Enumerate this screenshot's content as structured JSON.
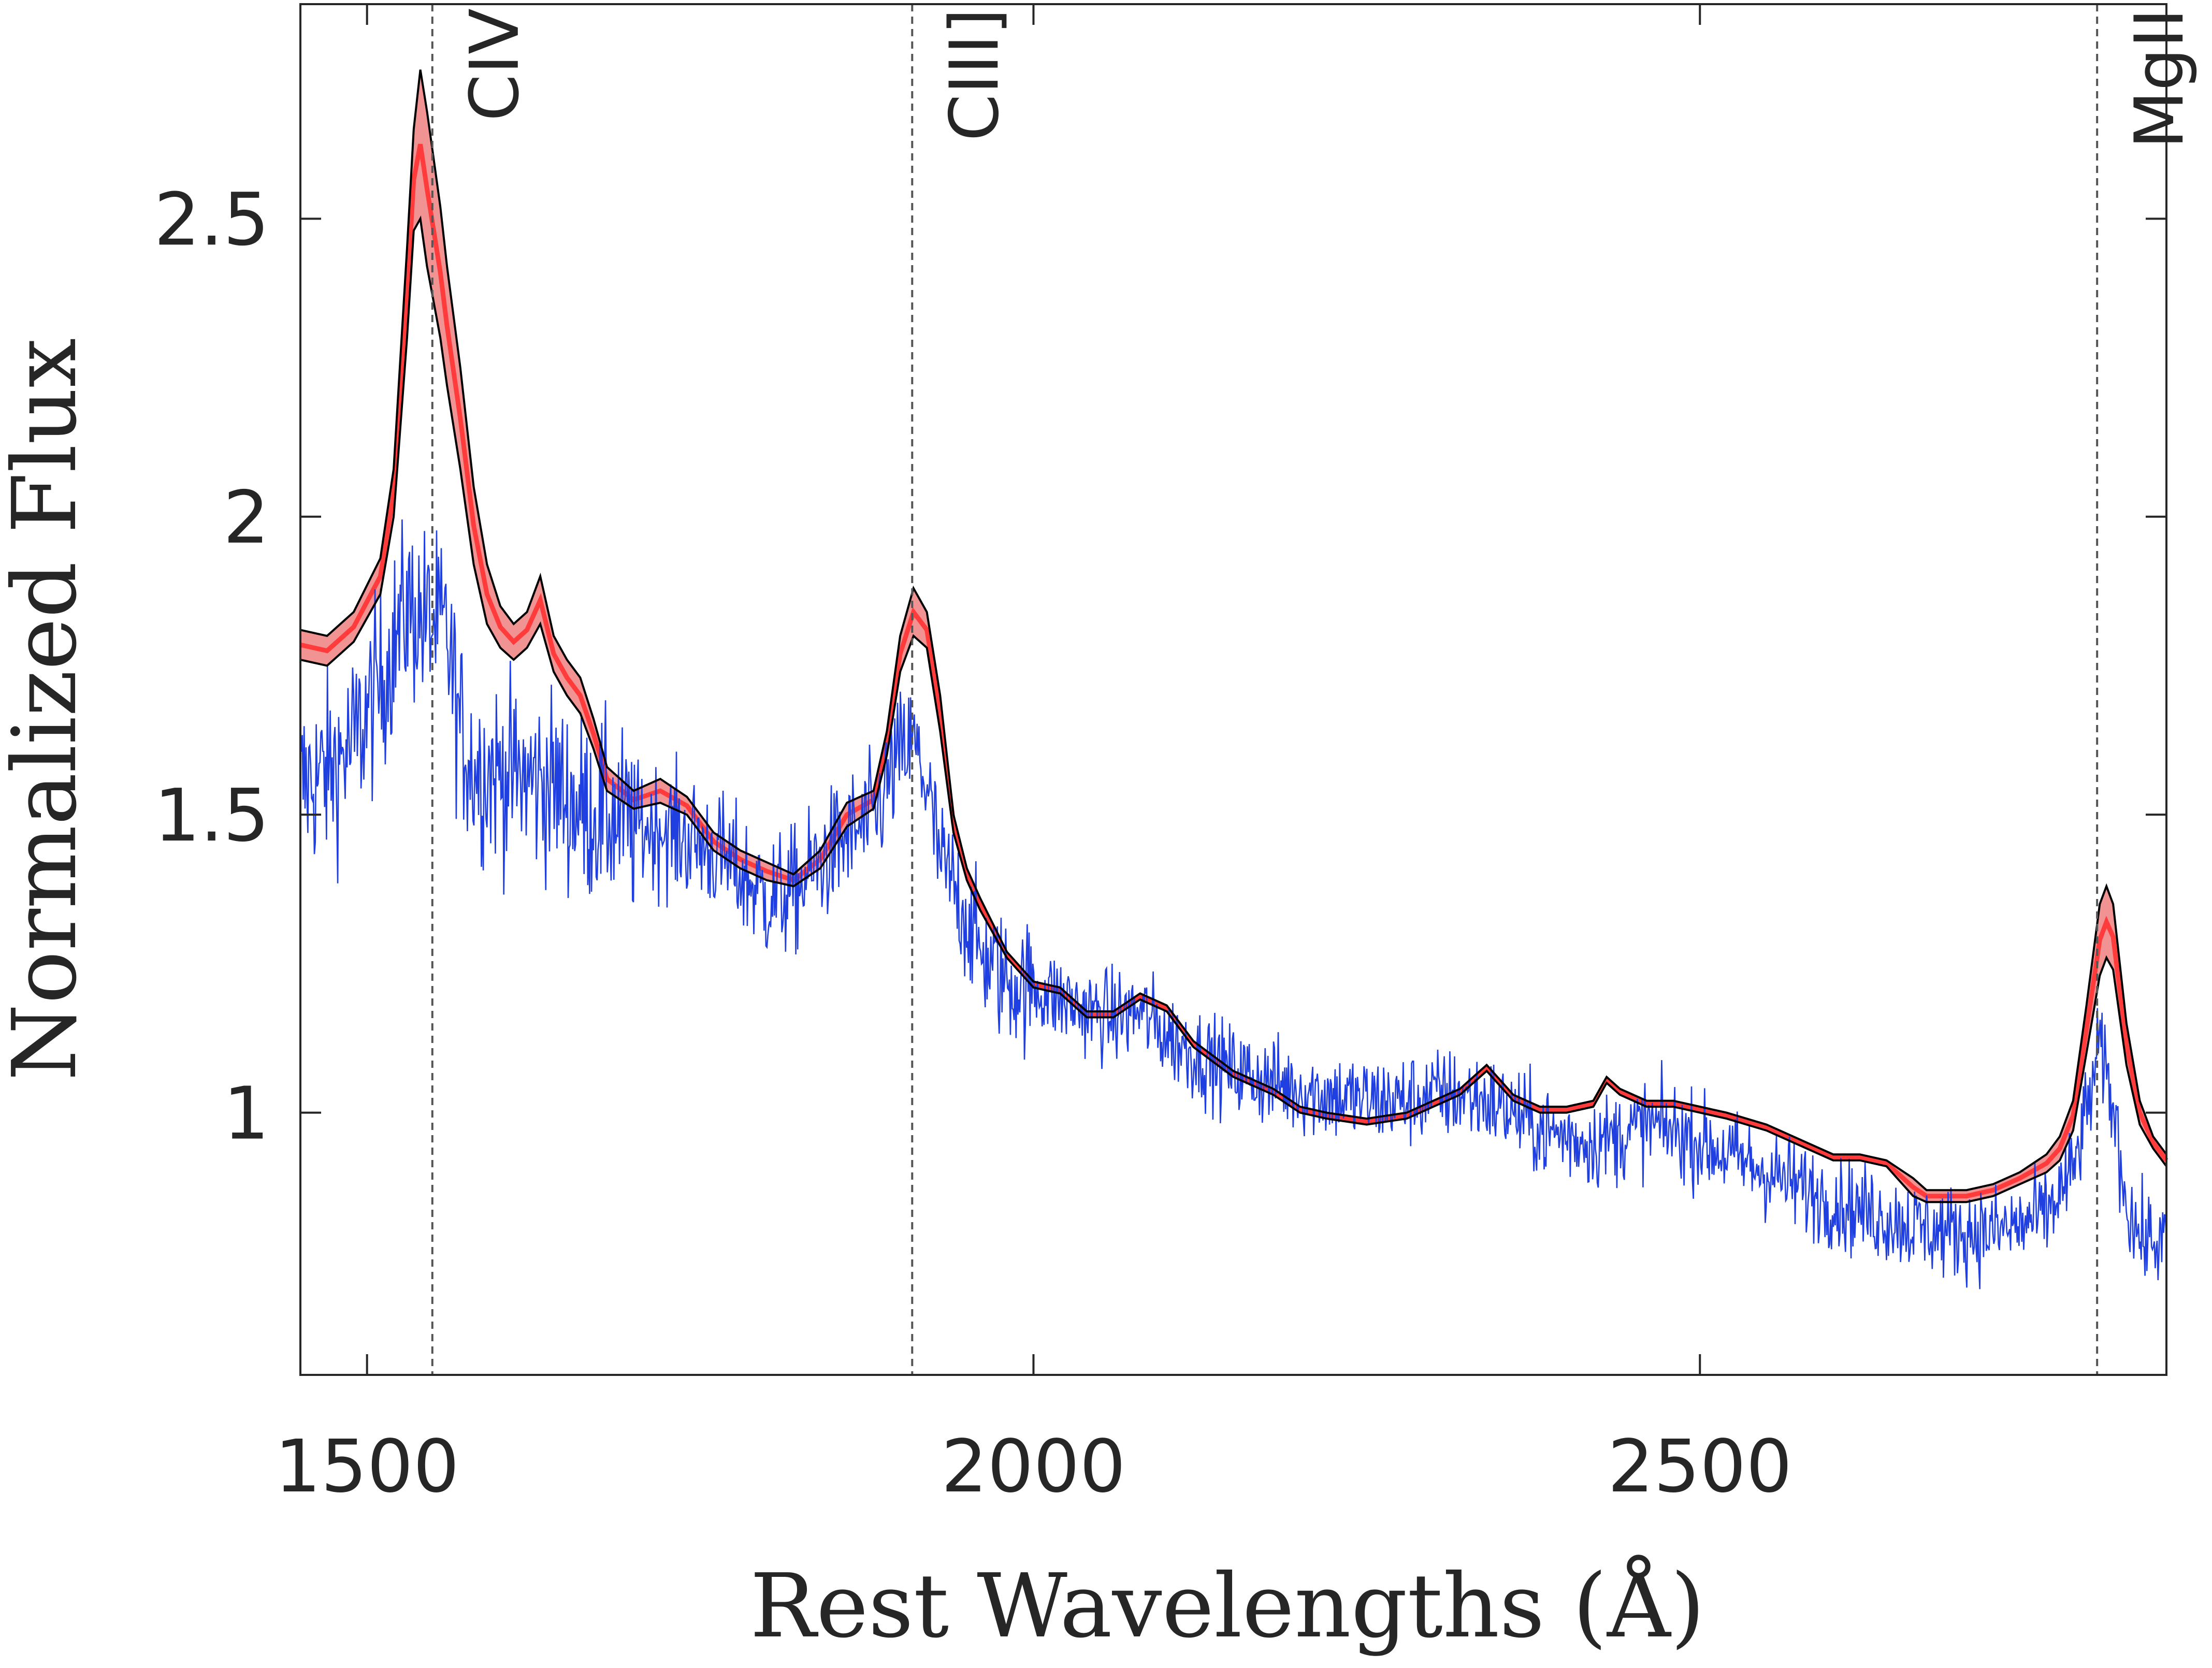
{
  "chart_data": {
    "type": "line",
    "title": "",
    "xlabel": "Rest Wavelengths (Å)",
    "ylabel": "Normalized Flux",
    "xlim": [
      1450,
      2850
    ],
    "ylim": [
      0.56,
      2.86
    ],
    "xticks": [
      1500,
      2000,
      2500
    ],
    "xtick_labels": [
      "1500",
      "2000",
      "2500"
    ],
    "yticks": [
      1,
      1.5,
      2,
      2.5
    ],
    "ytick_labels": [
      "1",
      "1.5",
      "2",
      "2.5"
    ],
    "grid": false,
    "legend": "none",
    "emission_lines": [
      {
        "label": "CIV",
        "x": 1549
      },
      {
        "label": "CIII]",
        "x": 1909
      },
      {
        "label": "MgII",
        "x": 2798
      }
    ],
    "series": [
      {
        "kind": "observed-spectrum",
        "color": "#1f3fe0",
        "noise_sigma": 0.07,
        "x": [
          1450,
          1470,
          1490,
          1510,
          1530,
          1540,
          1550,
          1560,
          1570,
          1580,
          1600,
          1620,
          1640,
          1660,
          1680,
          1700,
          1720,
          1740,
          1760,
          1780,
          1800,
          1820,
          1840,
          1860,
          1880,
          1890,
          1900,
          1910,
          1920,
          1930,
          1940,
          1960,
          1980,
          2000,
          2020,
          2040,
          2060,
          2080,
          2100,
          2120,
          2150,
          2180,
          2200,
          2220,
          2250,
          2280,
          2300,
          2320,
          2340,
          2360,
          2380,
          2400,
          2420,
          2440,
          2460,
          2480,
          2500,
          2520,
          2550,
          2580,
          2600,
          2630,
          2660,
          2680,
          2700,
          2720,
          2740,
          2760,
          2780,
          2790,
          2800,
          2810,
          2820,
          2830,
          2850
        ],
        "y": [
          1.55,
          1.57,
          1.62,
          1.72,
          1.85,
          1.83,
          1.82,
          1.8,
          1.64,
          1.58,
          1.57,
          1.56,
          1.55,
          1.51,
          1.5,
          1.48,
          1.48,
          1.46,
          1.44,
          1.4,
          1.36,
          1.37,
          1.42,
          1.46,
          1.49,
          1.55,
          1.6,
          1.62,
          1.55,
          1.42,
          1.38,
          1.27,
          1.22,
          1.21,
          1.19,
          1.17,
          1.16,
          1.17,
          1.13,
          1.1,
          1.07,
          1.05,
          1.04,
          1.03,
          1.02,
          1.02,
          1.03,
          1.03,
          1.02,
          1.0,
          0.97,
          0.96,
          0.95,
          0.96,
          0.98,
          0.97,
          0.95,
          0.93,
          0.9,
          0.87,
          0.85,
          0.83,
          0.81,
          0.8,
          0.8,
          0.8,
          0.81,
          0.83,
          0.9,
          1.0,
          1.11,
          1.01,
          0.85,
          0.79,
          0.78
        ]
      },
      {
        "kind": "model-upper",
        "color": "#000000",
        "x": [
          1450,
          1470,
          1490,
          1510,
          1520,
          1530,
          1535,
          1540,
          1545,
          1550,
          1555,
          1560,
          1570,
          1580,
          1590,
          1600,
          1610,
          1620,
          1630,
          1640,
          1650,
          1660,
          1670,
          1680,
          1700,
          1720,
          1740,
          1760,
          1780,
          1800,
          1820,
          1840,
          1860,
          1880,
          1890,
          1900,
          1910,
          1920,
          1930,
          1940,
          1950,
          1960,
          1980,
          2000,
          2020,
          2040,
          2060,
          2080,
          2100,
          2120,
          2150,
          2180,
          2200,
          2220,
          2250,
          2280,
          2300,
          2320,
          2340,
          2360,
          2380,
          2400,
          2420,
          2430,
          2440,
          2460,
          2480,
          2500,
          2520,
          2550,
          2580,
          2600,
          2620,
          2640,
          2660,
          2670,
          2680,
          2700,
          2720,
          2740,
          2760,
          2770,
          2780,
          2790,
          2800,
          2805,
          2810,
          2820,
          2830,
          2840,
          2850
        ],
        "y": [
          1.81,
          1.8,
          1.84,
          1.93,
          2.08,
          2.45,
          2.65,
          2.75,
          2.68,
          2.6,
          2.52,
          2.42,
          2.25,
          2.05,
          1.92,
          1.85,
          1.82,
          1.84,
          1.9,
          1.8,
          1.76,
          1.73,
          1.66,
          1.58,
          1.54,
          1.56,
          1.53,
          1.47,
          1.44,
          1.42,
          1.4,
          1.44,
          1.52,
          1.54,
          1.64,
          1.8,
          1.88,
          1.84,
          1.7,
          1.5,
          1.41,
          1.36,
          1.27,
          1.22,
          1.21,
          1.17,
          1.17,
          1.2,
          1.18,
          1.12,
          1.07,
          1.04,
          1.01,
          1.0,
          0.99,
          1.0,
          1.02,
          1.04,
          1.08,
          1.03,
          1.01,
          1.01,
          1.02,
          1.06,
          1.04,
          1.02,
          1.02,
          1.01,
          1.0,
          0.98,
          0.95,
          0.93,
          0.93,
          0.92,
          0.89,
          0.87,
          0.87,
          0.87,
          0.88,
          0.9,
          0.93,
          0.96,
          1.02,
          1.18,
          1.35,
          1.38,
          1.35,
          1.15,
          1.02,
          0.96,
          0.93
        ]
      },
      {
        "kind": "model-lower",
        "color": "#000000",
        "x": [
          1450,
          1470,
          1490,
          1510,
          1520,
          1530,
          1535,
          1540,
          1545,
          1550,
          1555,
          1560,
          1570,
          1580,
          1590,
          1600,
          1610,
          1620,
          1630,
          1640,
          1650,
          1660,
          1670,
          1680,
          1700,
          1720,
          1740,
          1760,
          1780,
          1800,
          1820,
          1840,
          1860,
          1880,
          1890,
          1900,
          1910,
          1920,
          1930,
          1940,
          1950,
          1960,
          1980,
          2000,
          2020,
          2040,
          2060,
          2080,
          2100,
          2120,
          2150,
          2180,
          2200,
          2220,
          2250,
          2280,
          2300,
          2320,
          2340,
          2360,
          2380,
          2400,
          2420,
          2430,
          2440,
          2460,
          2480,
          2500,
          2520,
          2550,
          2580,
          2600,
          2620,
          2640,
          2660,
          2670,
          2680,
          2700,
          2720,
          2740,
          2760,
          2770,
          2780,
          2790,
          2800,
          2805,
          2810,
          2820,
          2830,
          2840,
          2850
        ],
        "y": [
          1.76,
          1.75,
          1.79,
          1.87,
          2.0,
          2.3,
          2.48,
          2.5,
          2.42,
          2.36,
          2.3,
          2.22,
          2.08,
          1.92,
          1.82,
          1.78,
          1.76,
          1.78,
          1.82,
          1.74,
          1.7,
          1.67,
          1.61,
          1.54,
          1.51,
          1.52,
          1.5,
          1.44,
          1.41,
          1.39,
          1.38,
          1.41,
          1.48,
          1.51,
          1.6,
          1.74,
          1.8,
          1.78,
          1.64,
          1.47,
          1.39,
          1.34,
          1.26,
          1.21,
          1.2,
          1.16,
          1.16,
          1.19,
          1.17,
          1.11,
          1.06,
          1.03,
          1.0,
          0.99,
          0.98,
          0.99,
          1.01,
          1.03,
          1.07,
          1.02,
          1.0,
          1.0,
          1.01,
          1.05,
          1.03,
          1.01,
          1.01,
          1.0,
          0.99,
          0.97,
          0.94,
          0.92,
          0.92,
          0.91,
          0.86,
          0.85,
          0.85,
          0.85,
          0.86,
          0.88,
          0.9,
          0.92,
          0.97,
          1.1,
          1.23,
          1.26,
          1.24,
          1.08,
          0.98,
          0.94,
          0.91
        ]
      }
    ]
  }
}
